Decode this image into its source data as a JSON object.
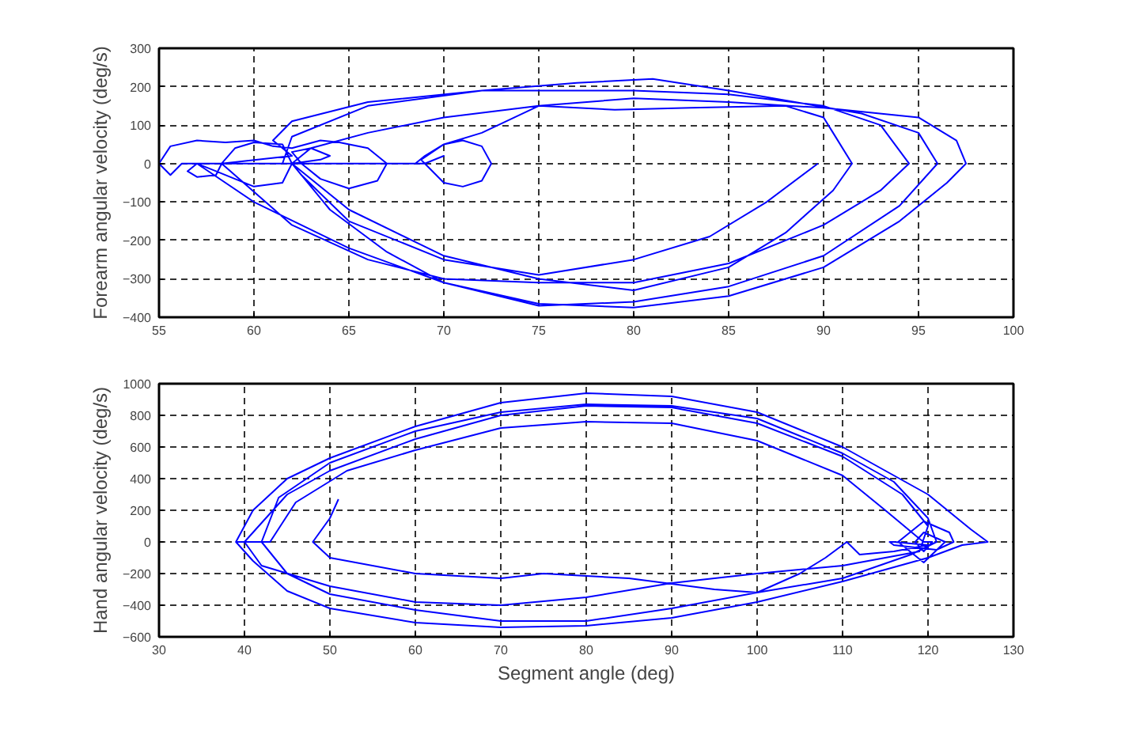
{
  "chart_data": [
    {
      "type": "line",
      "ylabel": "Forearm angular velocity (deg/s)",
      "xlim": [
        55,
        100
      ],
      "ylim": [
        -400,
        300
      ],
      "xticks": [
        55,
        60,
        65,
        70,
        75,
        80,
        85,
        90,
        95,
        100
      ],
      "yticks": [
        -400,
        -300,
        -200,
        -100,
        0,
        100,
        200,
        300
      ],
      "grid": true,
      "series": [
        {
          "color": "#0000ff",
          "x": [
            57,
            56.5,
            57,
            58,
            58.3,
            59,
            60,
            61.5,
            62,
            61.5,
            60,
            59,
            58,
            57,
            56.2,
            55.6,
            55,
            55.6,
            57,
            58.5,
            60,
            61,
            62,
            63.5,
            64.5,
            66,
            67,
            66.5,
            65,
            63.5,
            62.5,
            62,
            63,
            64,
            63.5,
            62,
            62,
            64,
            67,
            70,
            75,
            80,
            85,
            90,
            94,
            96.5,
            97.5,
            97,
            95,
            90,
            85,
            80,
            75,
            70,
            66,
            63,
            62,
            57,
            60,
            65,
            70,
            75,
            80,
            85,
            90,
            94,
            96,
            95,
            92,
            85,
            81,
            77,
            72,
            66,
            62,
            61,
            62,
            58.3,
            62,
            66,
            70,
            75,
            80,
            85,
            90,
            93,
            94.5,
            93,
            90,
            85,
            80,
            72,
            66,
            62,
            61.5,
            62,
            65,
            70,
            75,
            80,
            85,
            88,
            90.5,
            91.5,
            90.5,
            90,
            88,
            83,
            79,
            75,
            72,
            70,
            68.8,
            69,
            70,
            69,
            70,
            71,
            72,
            72.5,
            72,
            71,
            70,
            69,
            68.5,
            69,
            62,
            62.5,
            65,
            70,
            75,
            80,
            84,
            87,
            89.7
          ],
          "values": [
            0,
            -20,
            -35,
            -30,
            0,
            40,
            55,
            50,
            0,
            -50,
            -60,
            -40,
            -20,
            0,
            0,
            -30,
            0,
            45,
            60,
            55,
            60,
            45,
            40,
            60,
            55,
            40,
            0,
            -45,
            -65,
            -40,
            0,
            30,
            40,
            20,
            10,
            0,
            0,
            -120,
            -230,
            -310,
            -365,
            -375,
            -345,
            -270,
            -150,
            -50,
            0,
            60,
            120,
            145,
            160,
            170,
            150,
            120,
            80,
            40,
            0,
            0,
            -100,
            -220,
            -310,
            -370,
            -360,
            -320,
            -240,
            -110,
            0,
            80,
            130,
            190,
            220,
            210,
            190,
            160,
            110,
            60,
            20,
            0,
            -160,
            -250,
            -300,
            -310,
            -310,
            -260,
            -160,
            -70,
            0,
            100,
            150,
            180,
            190,
            190,
            150,
            70,
            0,
            0,
            -120,
            -240,
            -300,
            -330,
            -270,
            -180,
            -70,
            0,
            80,
            120,
            150,
            145,
            140,
            150,
            80,
            50,
            10,
            0,
            20,
            0,
            -50,
            -60,
            -45,
            0,
            45,
            60,
            50,
            20,
            0,
            0,
            0,
            -30,
            -150,
            -250,
            -290,
            -250,
            -190,
            -100,
            0
          ]
        }
      ]
    },
    {
      "type": "line",
      "xlabel": "Segment angle (deg)",
      "ylabel": "Hand angular velocity (deg/s)",
      "xlim": [
        30,
        130
      ],
      "ylim": [
        -600,
        1000
      ],
      "xticks": [
        30,
        40,
        50,
        60,
        70,
        80,
        90,
        100,
        110,
        120,
        130
      ],
      "yticks": [
        -600,
        -400,
        -200,
        0,
        200,
        400,
        600,
        800,
        1000
      ],
      "grid": true,
      "series": [
        {
          "color": "#0000ff",
          "x": [
            39,
            41,
            45,
            50,
            60,
            70,
            80,
            90,
            100,
            110,
            120,
            125,
            127,
            124,
            120,
            110,
            100,
            90,
            80,
            70,
            60,
            50,
            45,
            41,
            39,
            40,
            45,
            50,
            60,
            70,
            80,
            90,
            100,
            110,
            117,
            120,
            119,
            110,
            100,
            90,
            80,
            70,
            60,
            50,
            42,
            40,
            42,
            44,
            50,
            60,
            70,
            80,
            90,
            100,
            110,
            116,
            120,
            121,
            118,
            110,
            100,
            90,
            80,
            70,
            60,
            50,
            45,
            42,
            43,
            46,
            52,
            60,
            70,
            80,
            90,
            100,
            110,
            115,
            119,
            119.5,
            120.5,
            119.5,
            118.5,
            119.5,
            122,
            119.5,
            116.5,
            119.5,
            122.5,
            123,
            121,
            116,
            115.5,
            116,
            120,
            116,
            112,
            110.5,
            108,
            105,
            100,
            95,
            85,
            75,
            70,
            60,
            50,
            48,
            50,
            51
          ],
          "values": [
            0,
            200,
            400,
            530,
            730,
            880,
            940,
            920,
            820,
            600,
            300,
            80,
            0,
            -20,
            -100,
            -250,
            -380,
            -480,
            -530,
            -540,
            -510,
            -420,
            -310,
            -120,
            0,
            0,
            300,
            450,
            650,
            800,
            860,
            850,
            750,
            540,
            300,
            100,
            -60,
            -150,
            -200,
            -260,
            -350,
            -400,
            -380,
            -280,
            -150,
            0,
            0,
            280,
            500,
            700,
            820,
            870,
            860,
            780,
            560,
            380,
            150,
            0,
            -80,
            -230,
            -320,
            -420,
            -500,
            -500,
            -430,
            -330,
            -200,
            0,
            0,
            250,
            450,
            580,
            720,
            760,
            750,
            640,
            420,
            200,
            20,
            0,
            0,
            -60,
            0,
            60,
            0,
            -130,
            0,
            130,
            60,
            0,
            -50,
            -20,
            0,
            0,
            -20,
            -60,
            -80,
            0,
            -100,
            -200,
            -320,
            -300,
            -230,
            -200,
            -230,
            -200,
            -100,
            0,
            150,
            270
          ]
        }
      ]
    }
  ]
}
